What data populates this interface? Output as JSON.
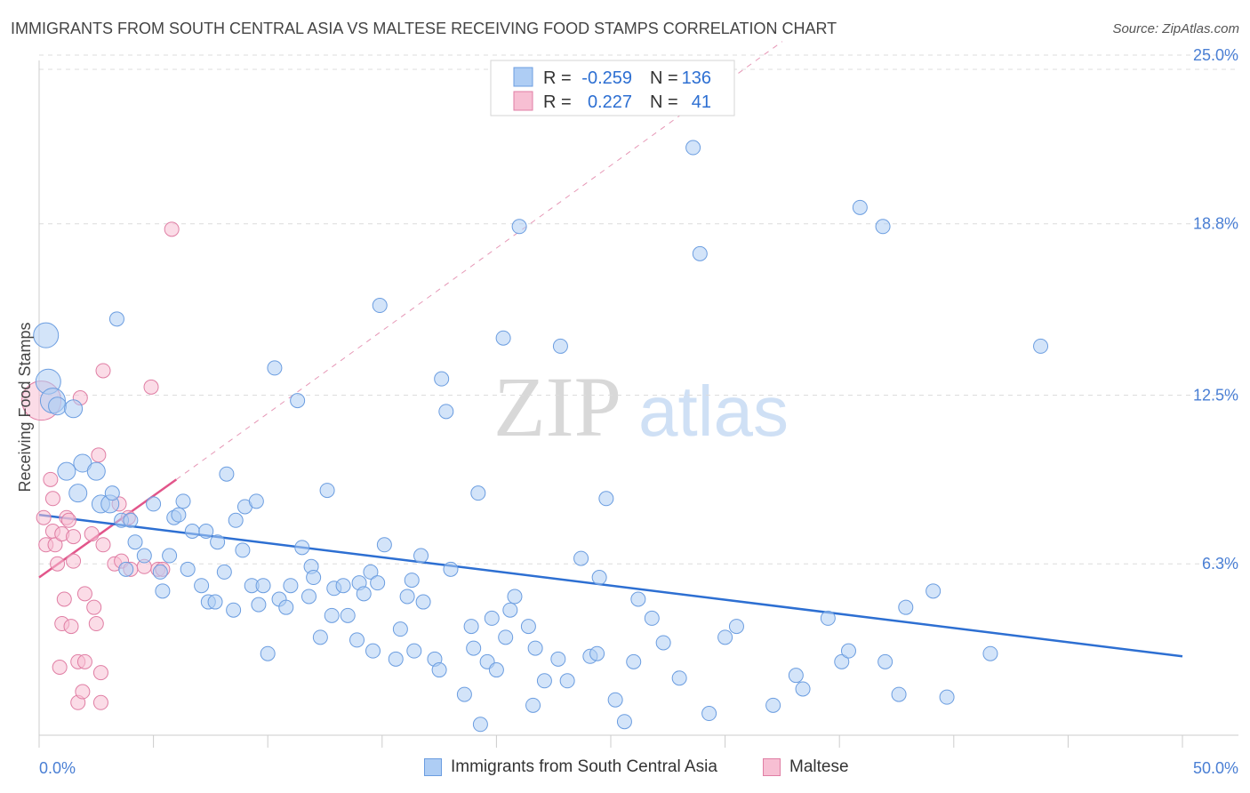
{
  "title": "IMMIGRANTS FROM SOUTH CENTRAL ASIA VS MALTESE RECEIVING FOOD STAMPS CORRELATION CHART",
  "source": "Source: ZipAtlas.com",
  "watermark": {
    "zip": "ZIP",
    "atlas": "atlas"
  },
  "legend_top": [
    {
      "r_label": "R =",
      "r_value": "-0.259",
      "n_label": "N =",
      "n_value": "136"
    },
    {
      "r_label": "R =",
      "r_value": "0.227",
      "n_label": "N =",
      "n_value": "41"
    }
  ],
  "colors": {
    "blue_fill": "#aecdf4",
    "blue_stroke": "#6b9de0",
    "blue_line": "#2d6fd2",
    "pink_fill": "#f7bfd3",
    "pink_stroke": "#e07ea4",
    "pink_line": "#e2558a",
    "tick_text": "#4a7fd4"
  },
  "chart_data": {
    "type": "scatter",
    "title": "IMMIGRANTS FROM SOUTH CENTRAL ASIA VS MALTESE RECEIVING FOOD STAMPS CORRELATION CHART",
    "xlabel": "",
    "ylabel": "Receiving Food Stamps",
    "xlim": [
      0,
      50
    ],
    "ylim": [
      0,
      27
    ],
    "x_tick_labels": [
      "0.0%",
      "50.0%"
    ],
    "y_ticks": [
      6.3,
      12.5,
      18.8,
      25.0
    ],
    "y_tick_labels": [
      "6.3%",
      "12.5%",
      "18.8%",
      "25.0%"
    ],
    "grid": true,
    "legend_position": "top-center",
    "series": [
      {
        "name": "Immigrants from South Central Asia",
        "color": "#aecdf4",
        "trend": {
          "x": [
            0,
            50
          ],
          "y": [
            8.1,
            2.9
          ]
        },
        "points": [
          [
            0.3,
            14.7,
            "L"
          ],
          [
            0.4,
            13.0,
            "L"
          ],
          [
            0.6,
            12.3,
            "L"
          ],
          [
            0.8,
            12.1,
            "M"
          ],
          [
            1.5,
            12.0,
            "M"
          ],
          [
            1.2,
            9.7,
            "M"
          ],
          [
            1.9,
            10.0,
            "M"
          ],
          [
            2.5,
            9.7,
            "M"
          ],
          [
            1.7,
            8.9,
            "M"
          ],
          [
            2.7,
            8.5,
            "M"
          ],
          [
            3.1,
            8.5,
            "M"
          ],
          [
            3.2,
            8.9,
            "S"
          ],
          [
            3.4,
            15.3,
            "S"
          ],
          [
            3.6,
            7.9,
            "S"
          ],
          [
            4.0,
            7.9,
            "S"
          ],
          [
            4.2,
            7.1,
            "S"
          ],
          [
            3.8,
            6.1,
            "S"
          ],
          [
            4.6,
            6.6,
            "S"
          ],
          [
            5.0,
            8.5,
            "S"
          ],
          [
            5.3,
            6.0,
            "S"
          ],
          [
            5.4,
            5.3,
            "S"
          ],
          [
            5.7,
            6.6,
            "S"
          ],
          [
            5.9,
            8.0,
            "S"
          ],
          [
            6.1,
            8.1,
            "S"
          ],
          [
            6.3,
            8.6,
            "S"
          ],
          [
            6.5,
            6.1,
            "S"
          ],
          [
            6.7,
            7.5,
            "S"
          ],
          [
            7.1,
            5.5,
            "S"
          ],
          [
            7.3,
            7.5,
            "S"
          ],
          [
            7.4,
            4.9,
            "S"
          ],
          [
            7.7,
            4.9,
            "S"
          ],
          [
            7.8,
            7.1,
            "S"
          ],
          [
            8.1,
            6.0,
            "S"
          ],
          [
            8.2,
            9.6,
            "S"
          ],
          [
            8.5,
            4.6,
            "S"
          ],
          [
            8.6,
            7.9,
            "S"
          ],
          [
            8.9,
            6.8,
            "S"
          ],
          [
            9.0,
            8.4,
            "S"
          ],
          [
            9.3,
            5.5,
            "S"
          ],
          [
            9.5,
            8.6,
            "S"
          ],
          [
            9.6,
            4.8,
            "S"
          ],
          [
            9.8,
            5.5,
            "S"
          ],
          [
            10.0,
            3.0,
            "S"
          ],
          [
            10.3,
            13.5,
            "S"
          ],
          [
            10.5,
            5.0,
            "S"
          ],
          [
            10.8,
            4.7,
            "S"
          ],
          [
            11.0,
            5.5,
            "S"
          ],
          [
            11.3,
            12.3,
            "S"
          ],
          [
            11.5,
            6.9,
            "S"
          ],
          [
            11.8,
            5.1,
            "S"
          ],
          [
            11.9,
            6.2,
            "S"
          ],
          [
            12.0,
            5.8,
            "S"
          ],
          [
            12.3,
            3.6,
            "S"
          ],
          [
            12.6,
            9.0,
            "S"
          ],
          [
            12.8,
            4.4,
            "S"
          ],
          [
            12.9,
            5.4,
            "S"
          ],
          [
            13.3,
            5.5,
            "S"
          ],
          [
            13.5,
            4.4,
            "S"
          ],
          [
            13.9,
            3.5,
            "S"
          ],
          [
            14.0,
            5.6,
            "S"
          ],
          [
            14.2,
            5.2,
            "S"
          ],
          [
            14.5,
            6.0,
            "S"
          ],
          [
            14.6,
            3.1,
            "S"
          ],
          [
            14.9,
            15.8,
            "S"
          ],
          [
            15.1,
            7.0,
            "S"
          ],
          [
            15.6,
            2.8,
            "S"
          ],
          [
            15.8,
            3.9,
            "S"
          ],
          [
            16.1,
            5.1,
            "S"
          ],
          [
            16.3,
            5.7,
            "S"
          ],
          [
            16.4,
            3.1,
            "S"
          ],
          [
            16.7,
            6.6,
            "S"
          ],
          [
            16.8,
            4.9,
            "S"
          ],
          [
            17.3,
            2.8,
            "S"
          ],
          [
            17.5,
            2.4,
            "S"
          ],
          [
            17.6,
            13.1,
            "S"
          ],
          [
            17.8,
            11.9,
            "S"
          ],
          [
            18.0,
            6.1,
            "S"
          ],
          [
            18.6,
            1.5,
            "S"
          ],
          [
            18.9,
            4.0,
            "S"
          ],
          [
            19.0,
            3.2,
            "S"
          ],
          [
            19.2,
            8.9,
            "S"
          ],
          [
            19.6,
            2.7,
            "S"
          ],
          [
            19.8,
            4.3,
            "S"
          ],
          [
            20.0,
            2.4,
            "S"
          ],
          [
            20.3,
            14.6,
            "S"
          ],
          [
            20.4,
            3.6,
            "S"
          ],
          [
            20.6,
            4.6,
            "S"
          ],
          [
            20.8,
            5.1,
            "S"
          ],
          [
            21.0,
            18.7,
            "S"
          ],
          [
            21.4,
            4.0,
            "S"
          ],
          [
            21.6,
            1.1,
            "S"
          ],
          [
            21.7,
            3.2,
            "S"
          ],
          [
            22.1,
            2.0,
            "S"
          ],
          [
            22.7,
            2.8,
            "S"
          ],
          [
            22.8,
            14.3,
            "S"
          ],
          [
            23.1,
            2.0,
            "S"
          ],
          [
            23.7,
            6.5,
            "S"
          ],
          [
            24.1,
            2.9,
            "S"
          ],
          [
            24.4,
            3.0,
            "S"
          ],
          [
            24.5,
            5.8,
            "S"
          ],
          [
            24.8,
            8.7,
            "S"
          ],
          [
            25.2,
            1.3,
            "S"
          ],
          [
            25.6,
            0.5,
            "S"
          ],
          [
            26.0,
            2.7,
            "S"
          ],
          [
            26.2,
            5.0,
            "S"
          ],
          [
            26.8,
            4.3,
            "S"
          ],
          [
            27.3,
            3.4,
            "S"
          ],
          [
            28.0,
            2.1,
            "S"
          ],
          [
            28.6,
            21.6,
            "S"
          ],
          [
            28.9,
            17.7,
            "S"
          ],
          [
            29.3,
            0.8,
            "S"
          ],
          [
            30.0,
            3.6,
            "S"
          ],
          [
            30.5,
            4.0,
            "S"
          ],
          [
            32.1,
            1.1,
            "S"
          ],
          [
            33.1,
            2.2,
            "S"
          ],
          [
            33.4,
            1.7,
            "S"
          ],
          [
            34.5,
            4.3,
            "S"
          ],
          [
            35.1,
            2.7,
            "S"
          ],
          [
            35.4,
            3.1,
            "S"
          ],
          [
            35.9,
            19.4,
            "S"
          ],
          [
            36.9,
            18.7,
            "S"
          ],
          [
            37.0,
            2.7,
            "S"
          ],
          [
            37.6,
            1.5,
            "S"
          ],
          [
            37.9,
            4.7,
            "S"
          ],
          [
            39.1,
            5.3,
            "S"
          ],
          [
            39.7,
            1.4,
            "S"
          ],
          [
            41.6,
            3.0,
            "S"
          ],
          [
            43.8,
            14.3,
            "S"
          ],
          [
            19.3,
            0.4,
            "S"
          ],
          [
            14.8,
            5.6,
            "S"
          ]
        ]
      },
      {
        "name": "Maltese",
        "color": "#f7bfd3",
        "trend": {
          "x": [
            0,
            6
          ],
          "y": [
            5.8,
            9.4
          ]
        },
        "trend_dashed_extension": {
          "x": [
            6,
            32.5
          ],
          "y": [
            9.4,
            25.5
          ]
        },
        "points": [
          [
            0.1,
            12.3,
            "XL"
          ],
          [
            0.2,
            8.0,
            "S"
          ],
          [
            0.3,
            7.0,
            "S"
          ],
          [
            0.5,
            9.4,
            "S"
          ],
          [
            0.6,
            7.5,
            "S"
          ],
          [
            0.6,
            8.7,
            "S"
          ],
          [
            0.7,
            7.0,
            "S"
          ],
          [
            0.8,
            6.3,
            "S"
          ],
          [
            0.9,
            2.5,
            "S"
          ],
          [
            1.0,
            7.4,
            "S"
          ],
          [
            1.0,
            4.1,
            "S"
          ],
          [
            1.1,
            5.0,
            "S"
          ],
          [
            1.2,
            8.0,
            "S"
          ],
          [
            1.3,
            7.9,
            "S"
          ],
          [
            1.4,
            4.0,
            "S"
          ],
          [
            1.5,
            6.4,
            "S"
          ],
          [
            1.5,
            7.3,
            "S"
          ],
          [
            1.7,
            2.7,
            "S"
          ],
          [
            1.7,
            1.2,
            "S"
          ],
          [
            1.8,
            12.4,
            "S"
          ],
          [
            1.9,
            1.6,
            "S"
          ],
          [
            2.0,
            2.7,
            "S"
          ],
          [
            2.0,
            5.2,
            "S"
          ],
          [
            2.3,
            7.4,
            "S"
          ],
          [
            2.4,
            4.7,
            "S"
          ],
          [
            2.5,
            4.1,
            "S"
          ],
          [
            2.6,
            10.3,
            "S"
          ],
          [
            2.7,
            2.3,
            "S"
          ],
          [
            2.7,
            1.2,
            "S"
          ],
          [
            2.8,
            13.4,
            "S"
          ],
          [
            2.8,
            7.0,
            "S"
          ],
          [
            3.3,
            6.3,
            "S"
          ],
          [
            3.5,
            8.5,
            "S"
          ],
          [
            3.6,
            6.4,
            "S"
          ],
          [
            3.9,
            8.0,
            "S"
          ],
          [
            4.0,
            6.1,
            "S"
          ],
          [
            4.9,
            12.8,
            "S"
          ],
          [
            5.2,
            6.1,
            "S"
          ],
          [
            5.4,
            6.1,
            "S"
          ],
          [
            5.8,
            18.6,
            "S"
          ],
          [
            4.6,
            6.2,
            "S"
          ]
        ]
      }
    ]
  },
  "bottom_legend": [
    {
      "label": "Immigrants from South Central Asia"
    },
    {
      "label": "Maltese"
    }
  ]
}
